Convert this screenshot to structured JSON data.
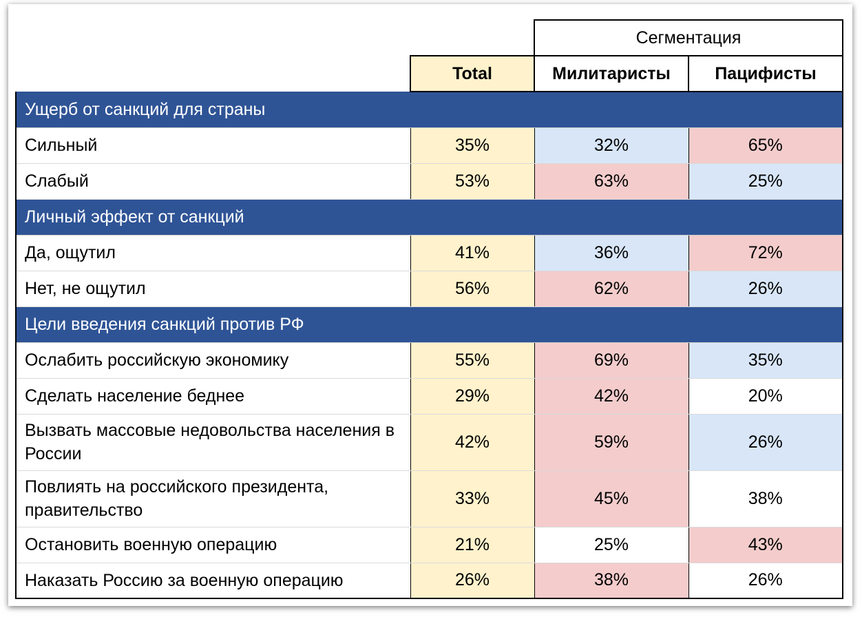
{
  "header": {
    "segmentation": "Сегментация",
    "total": "Total",
    "militarists": "Милитаристы",
    "pacifists": "Пацифисты"
  },
  "palette": {
    "pink": "#f4cccc",
    "blue": "#d8e6f8",
    "total": "#fff2cc",
    "section": "#2f5496"
  },
  "sections": [
    {
      "title": "Ущерб от санкций для страны",
      "rows": [
        {
          "label": "Сильный",
          "total": "35%",
          "mil": "32%",
          "mil_color": "blue",
          "pac": "65%",
          "pac_color": "pink"
        },
        {
          "label": "Слабый",
          "total": "53%",
          "mil": "63%",
          "mil_color": "pink",
          "pac": "25%",
          "pac_color": "blue"
        }
      ]
    },
    {
      "title": "Личный эффект от санкций",
      "rows": [
        {
          "label": "Да, ощутил",
          "total": "41%",
          "mil": "36%",
          "mil_color": "blue",
          "pac": "72%",
          "pac_color": "pink"
        },
        {
          "label": "Нет, не ощутил",
          "total": "56%",
          "mil": "62%",
          "mil_color": "pink",
          "pac": "26%",
          "pac_color": "blue"
        }
      ]
    },
    {
      "title": "Цели введения санкций против РФ",
      "rows": [
        {
          "label": "Ослабить российскую экономику",
          "total": "55%",
          "mil": "69%",
          "mil_color": "pink",
          "pac": "35%",
          "pac_color": "blue"
        },
        {
          "label": "Сделать население беднее",
          "total": "29%",
          "mil": "42%",
          "mil_color": "pink",
          "pac": "20%",
          "pac_color": "none"
        },
        {
          "label": "Вызвать массовые недовольства населения в России",
          "total": "42%",
          "mil": "59%",
          "mil_color": "pink",
          "pac": "26%",
          "pac_color": "blue",
          "tall": true
        },
        {
          "label": "Повлиять на российского президента, правительство",
          "total": "33%",
          "mil": "45%",
          "mil_color": "pink",
          "pac": "38%",
          "pac_color": "none",
          "tall": true
        },
        {
          "label": "Остановить военную операцию",
          "total": "21%",
          "mil": "25%",
          "mil_color": "none",
          "pac": "43%",
          "pac_color": "pink"
        },
        {
          "label": "Наказать Россию за военную операцию",
          "total": "26%",
          "mil": "38%",
          "mil_color": "pink",
          "pac": "26%",
          "pac_color": "none"
        }
      ]
    }
  ]
}
